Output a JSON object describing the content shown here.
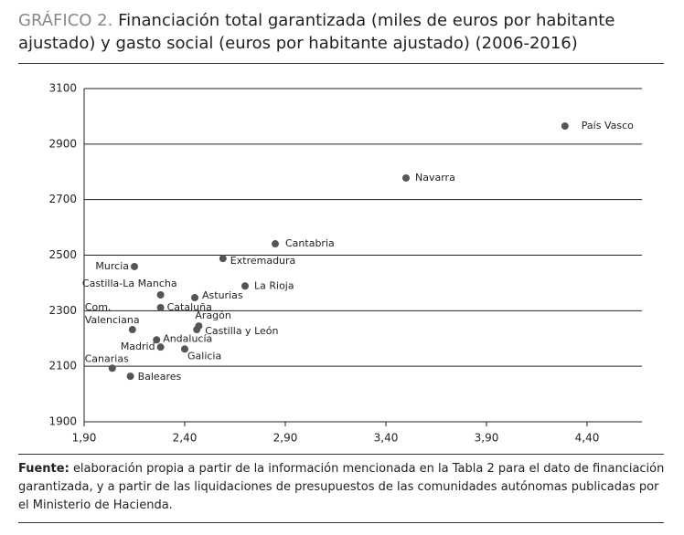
{
  "chart_data": {
    "type": "scatter",
    "label": "GRÁFICO 2.",
    "title": "Financiación total garantizada (miles de euros por habitante ajustado) y gasto social (euros por habitante ajustado) (2006-2016)",
    "labels": [
      "País Vasco",
      "Navarra",
      "Cantabria",
      "Extremadura",
      "Murcia",
      "La Rioja",
      "Castilla-La Mancha",
      "Asturias",
      "Cataluña",
      "Aragón",
      "Castilla y León",
      "Com. Valenciana",
      "Andalucía",
      "Madrid",
      "Galicia",
      "Canarias",
      "Baleares"
    ],
    "x": [
      4.29,
      3.5,
      2.85,
      2.59,
      2.15,
      2.7,
      2.28,
      2.45,
      2.28,
      2.47,
      2.46,
      2.14,
      2.26,
      2.28,
      2.4,
      2.04,
      2.13
    ],
    "y": [
      2965,
      2778,
      2541,
      2488,
      2459,
      2389,
      2357,
      2347,
      2311,
      2245,
      2232,
      2232,
      2195,
      2169,
      2162,
      2093,
      2064
    ],
    "color": "#555555",
    "xlim": [
      1.9,
      4.6
    ],
    "ylim": [
      1900,
      3100
    ],
    "xticks": [
      {
        "value": 1.9,
        "label": "1,90"
      },
      {
        "value": 2.4,
        "label": "2,40"
      },
      {
        "value": 2.9,
        "label": "2,90"
      },
      {
        "value": 3.4,
        "label": "3,40"
      },
      {
        "value": 3.9,
        "label": "3,90"
      },
      {
        "value": 4.4,
        "label": "4,40"
      }
    ],
    "yticks": [
      1900,
      2100,
      2300,
      2500,
      2700,
      2900,
      3100
    ],
    "grid": true
  },
  "footer": {
    "label": "Fuente:",
    "text": "elaboración propia a partir de la información mencionada en la Tabla 2 para el dato de financiación garantizada, y a partir de las liquidaciones de presupuestos de las comunidades autónomas publicadas por el Ministerio de Hacienda."
  }
}
